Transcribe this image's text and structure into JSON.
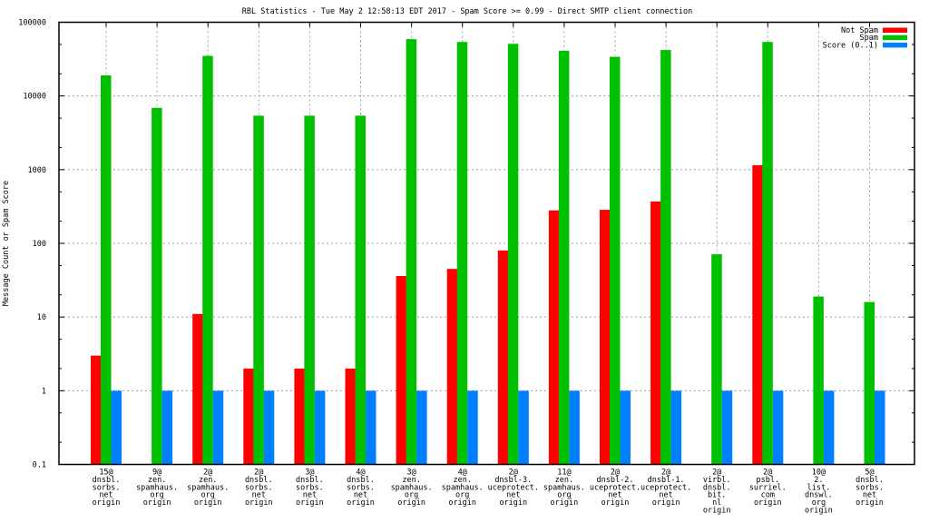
{
  "chart_data": {
    "type": "bar",
    "title": "RBL Statistics - Tue May  2 12:58:13 EDT 2017 - Spam Score >= 0.99 - Direct SMTP client connection",
    "xlabel": "",
    "ylabel": "Message Count or Spam Score",
    "yscale": "log",
    "ylim": [
      0.1,
      100000
    ],
    "yticks": [
      "0.1",
      "1",
      "10",
      "100",
      "1000",
      "10000",
      "100000"
    ],
    "grid": true,
    "legend_position": "top-right",
    "categories": [
      [
        "15@",
        "dnsbl.",
        "sorbs.",
        "net",
        "origin"
      ],
      [
        "9@",
        "zen.",
        "spamhaus.",
        "org",
        "origin"
      ],
      [
        "2@",
        "zen.",
        "spamhaus.",
        "org",
        "origin"
      ],
      [
        "2@",
        "dnsbl.",
        "sorbs.",
        "net",
        "origin"
      ],
      [
        "3@",
        "dnsbl.",
        "sorbs.",
        "net",
        "origin"
      ],
      [
        "4@",
        "dnsbl.",
        "sorbs.",
        "net",
        "origin"
      ],
      [
        "3@",
        "zen.",
        "spamhaus.",
        "org",
        "origin"
      ],
      [
        "4@",
        "zen.",
        "spamhaus.",
        "org",
        "origin"
      ],
      [
        "2@",
        "dnsbl-3.",
        "uceprotect.",
        "net",
        "origin"
      ],
      [
        "11@",
        "zen.",
        "spamhaus.",
        "org",
        "origin"
      ],
      [
        "2@",
        "dnsbl-2.",
        "uceprotect.",
        "net",
        "origin"
      ],
      [
        "2@",
        "dnsbl-1.",
        "uceprotect.",
        "net",
        "origin"
      ],
      [
        "2@",
        "virbl.",
        "dnsbl.",
        "bit.",
        "nl",
        "origin"
      ],
      [
        "2@",
        "psbl.",
        "surriel.",
        "com",
        "origin"
      ],
      [
        "10@",
        "2.",
        "list.",
        "dnswl.",
        "org",
        "origin"
      ],
      [
        "5@",
        "dnsbl.",
        "sorbs.",
        "net",
        "origin"
      ]
    ],
    "series": [
      {
        "name": "Not Spam",
        "color": "#ff0000",
        "values": [
          3,
          null,
          11,
          2,
          2,
          2,
          36,
          45,
          80,
          280,
          285,
          370,
          null,
          1150,
          null,
          null
        ]
      },
      {
        "name": "Spam",
        "color": "#00c000",
        "values": [
          19000,
          6900,
          35000,
          5400,
          5400,
          5400,
          59000,
          54000,
          51000,
          41000,
          34000,
          42000,
          71,
          54000,
          19,
          16
        ]
      },
      {
        "name": "Score (0..1)",
        "color": "#0080ff",
        "values": [
          1,
          1,
          1,
          1,
          1,
          1,
          1,
          1,
          1,
          1,
          1,
          1,
          1,
          1,
          1,
          1
        ]
      }
    ]
  }
}
